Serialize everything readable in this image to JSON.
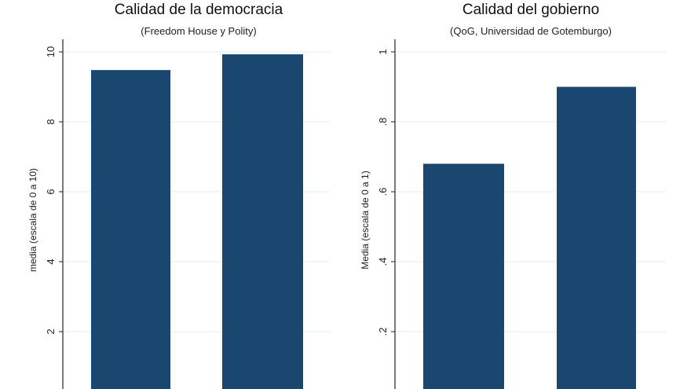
{
  "chart_data": [
    {
      "type": "bar",
      "title": "Calidad de la democracia",
      "subtitle": "(Freedom House y Polity)",
      "ylabel": "media (escala de 0 a 10)",
      "xlabel": "",
      "ylim": [
        0,
        10
      ],
      "yticks": [
        2,
        4,
        6,
        8,
        10
      ],
      "ytick_labels": [
        "2",
        "4",
        "6",
        "8",
        "10"
      ],
      "categories": [
        "",
        ""
      ],
      "values": [
        9.48,
        9.93
      ],
      "grid": true,
      "bar_color": "#1a476f"
    },
    {
      "type": "bar",
      "title": "Calidad del gobierno",
      "subtitle": "(QoG, Universidad de Gotemburgo)",
      "ylabel": "Media (escala de 0 a 1)",
      "xlabel": "",
      "ylim": [
        0,
        1
      ],
      "yticks": [
        0.2,
        0.4,
        0.6,
        0.8,
        1
      ],
      "ytick_labels": [
        ".2",
        ".4",
        ".6",
        ".8",
        "1"
      ],
      "categories": [
        "",
        ""
      ],
      "values": [
        0.68,
        0.9
      ],
      "grid": true,
      "bar_color": "#1a476f"
    }
  ]
}
